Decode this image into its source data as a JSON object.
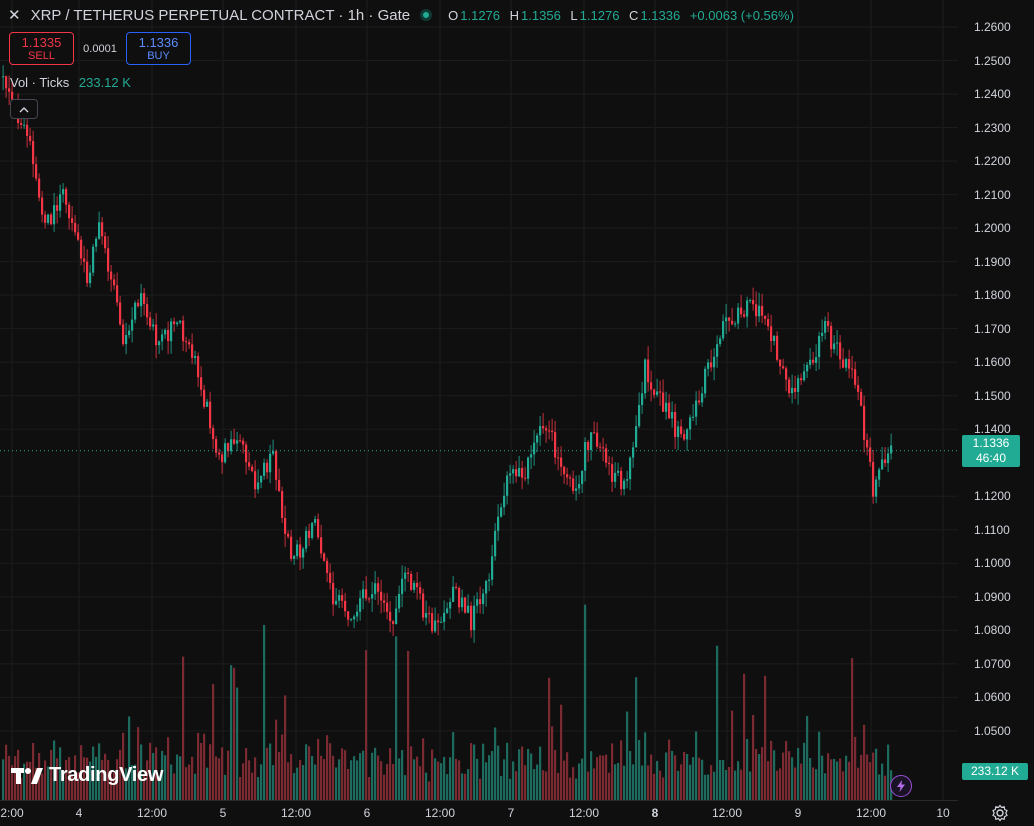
{
  "legend": {
    "title": "XRP / TETHERUS PERPETUAL CONTRACT · 1h · Gate",
    "open_label": "O",
    "open": "1.1276",
    "high_label": "H",
    "high": "1.1356",
    "low_label": "L",
    "low": "1.1276",
    "close_label": "C",
    "close": "1.1336",
    "change": "+0.0063 (+0.56%)"
  },
  "trade": {
    "sell_price": "1.1335",
    "sell_label": "SELL",
    "spread": "0.0001",
    "buy_price": "1.1336",
    "buy_label": "BUY"
  },
  "volume": {
    "name": "Vol · Ticks",
    "value": "233.12 K"
  },
  "badges": {
    "last_price": "1.1336",
    "countdown": "46:40",
    "volume": "233.12 K"
  },
  "logo": {
    "text": "TradingView"
  },
  "colors": {
    "up": "#22ab94",
    "down": "#f23645",
    "up_volume": "#1d6b5e",
    "down_volume": "#7a2a30",
    "background": "#0f0f0f"
  },
  "icons": {
    "close": "close-x-icon",
    "collapse": "chevron-up-icon",
    "lightning": "lightning-icon",
    "settings": "gear-icon"
  },
  "chart_data": {
    "type": "candlestick",
    "price_ticks": [
      "1.2600",
      "1.2500",
      "1.2400",
      "1.2300",
      "1.2200",
      "1.2100",
      "1.2000",
      "1.1900",
      "1.1800",
      "1.1700",
      "1.1600",
      "1.1500",
      "1.1400",
      "1.1200",
      "1.1100",
      "1.1000",
      "1.0900",
      "1.0800",
      "1.0700",
      "1.0600",
      "1.0500"
    ],
    "time_ticks": [
      {
        "label": "2:00",
        "bold": false
      },
      {
        "label": "4",
        "bold": false
      },
      {
        "label": "12:00",
        "bold": false
      },
      {
        "label": "5",
        "bold": false
      },
      {
        "label": "12:00",
        "bold": false
      },
      {
        "label": "6",
        "bold": false
      },
      {
        "label": "12:00",
        "bold": false
      },
      {
        "label": "7",
        "bold": false
      },
      {
        "label": "12:00",
        "bold": false
      },
      {
        "label": "8",
        "bold": true
      },
      {
        "label": "12:00",
        "bold": false
      },
      {
        "label": "9",
        "bold": false
      },
      {
        "label": "12:00",
        "bold": false
      },
      {
        "label": "10",
        "bold": false
      }
    ],
    "waypoints": [
      [
        0,
        1.243
      ],
      [
        8,
        1.228
      ],
      [
        14,
        1.2
      ],
      [
        20,
        1.21
      ],
      [
        28,
        1.185
      ],
      [
        32,
        1.2
      ],
      [
        40,
        1.168
      ],
      [
        46,
        1.18
      ],
      [
        52,
        1.165
      ],
      [
        58,
        1.172
      ],
      [
        64,
        1.16
      ],
      [
        72,
        1.132
      ],
      [
        78,
        1.137
      ],
      [
        84,
        1.124
      ],
      [
        90,
        1.132
      ],
      [
        96,
        1.1
      ],
      [
        104,
        1.112
      ],
      [
        110,
        1.09
      ],
      [
        116,
        1.085
      ],
      [
        124,
        1.095
      ],
      [
        130,
        1.08
      ],
      [
        134,
        1.1
      ],
      [
        138,
        1.09
      ],
      [
        144,
        1.08
      ],
      [
        150,
        1.092
      ],
      [
        156,
        1.083
      ],
      [
        162,
        1.098
      ],
      [
        168,
        1.125
      ],
      [
        174,
        1.128
      ],
      [
        180,
        1.143
      ],
      [
        186,
        1.13
      ],
      [
        190,
        1.12
      ],
      [
        196,
        1.14
      ],
      [
        202,
        1.128
      ],
      [
        208,
        1.123
      ],
      [
        214,
        1.158
      ],
      [
        220,
        1.148
      ],
      [
        226,
        1.137
      ],
      [
        232,
        1.15
      ],
      [
        238,
        1.167
      ],
      [
        244,
        1.174
      ],
      [
        250,
        1.178
      ],
      [
        256,
        1.168
      ],
      [
        262,
        1.15
      ],
      [
        268,
        1.158
      ],
      [
        274,
        1.17
      ],
      [
        280,
        1.16
      ],
      [
        284,
        1.155
      ],
      [
        290,
        1.122
      ],
      [
        296,
        1.134
      ]
    ],
    "last_close": 1.1336
  }
}
